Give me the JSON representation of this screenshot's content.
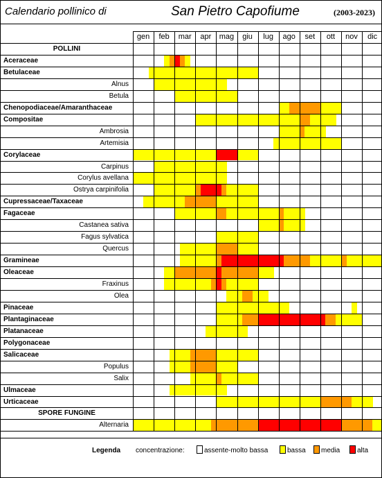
{
  "header": {
    "title_left": "Calendario pollinico di",
    "title_city": "San Pietro Capofiume",
    "years": "(2003-2023)"
  },
  "months": [
    "gen",
    "feb",
    "mar",
    "apr",
    "mag",
    "giu",
    "lug",
    "ago",
    "set",
    "ott",
    "nov",
    "dic"
  ],
  "colors": {
    "0": "#ffffff",
    "1": "#ffff00",
    "2": "#ff9900",
    "3": "#ff0000"
  },
  "rows": [
    {
      "label": "POLLINI",
      "kind": "section",
      "cells": ""
    },
    {
      "label": "Aceraceae",
      "kind": "family",
      "cells": "000000123210000000000000000000000000000000000000"
    },
    {
      "label": "Betulaceae",
      "kind": "family",
      "cells": "000111111111111111111111000000000000000000000000"
    },
    {
      "label": "Alnus",
      "kind": "species",
      "cells": "000011111111111111000000000000000000000000000000"
    },
    {
      "label": "Betula",
      "kind": "species",
      "cells": "000000001111111111110000000000000000000000000000"
    },
    {
      "label": "Chenopodiaceae/Amaranthaceae",
      "kind": "family",
      "cells": "000000000000000000000000000011222222111100000000"
    },
    {
      "label": "Compositae",
      "kind": "family",
      "cells": "000000000000111111111111111111112211111000000000"
    },
    {
      "label": "Ambrosia",
      "kind": "species",
      "cells": "000000000000000000000000000011112111100000000000"
    },
    {
      "label": "Artemisia",
      "kind": "species",
      "cells": "000000000000000000000000000111111111111100000000"
    },
    {
      "label": "Corylaceae",
      "kind": "family",
      "cells": "111111111111111133331111000000000000000000000000"
    },
    {
      "label": "Carpinus",
      "kind": "species",
      "cells": "000011111111111111000000000000000000000000000000"
    },
    {
      "label": "Corylus avellana",
      "kind": "species",
      "cells": "111111111111111111000000000000000000000000000000"
    },
    {
      "label": "Ostrya carpinifolia",
      "kind": "species",
      "cells": "000011111111233332111111000000000000000000000000"
    },
    {
      "label": "Cupressaceae/Taxaceae",
      "kind": "family",
      "cells": "001111111122222211111111000000000000000000000000"
    },
    {
      "label": "Fagaceae",
      "kind": "family",
      "cells": "000000001111111122111111111121111000000000000000"
    },
    {
      "label": "Castanea sativa",
      "kind": "species",
      "cells": "000000000000000000000000111121111000000000000000"
    },
    {
      "label": "Fagus sylvatica",
      "kind": "species",
      "cells": "000000000000000011111111000000000000000000000000"
    },
    {
      "label": "Quercus",
      "kind": "species",
      "cells": "000000000111111122221111000000000000000000000000"
    },
    {
      "label": "Gramineae",
      "kind": "family",
      "cells": "000000000111111123333333333332222211111121111111"
    },
    {
      "label": "Oleaceae",
      "kind": "family",
      "cells": "000000112222222232222222111000000000000000000000"
    },
    {
      "label": "Fraxinus",
      "kind": "species",
      "cells": "000000111111111232111111000000000000000000000000"
    },
    {
      "label": "Olea",
      "kind": "species",
      "cells": "000000000000000000111221110000000000000000000000"
    },
    {
      "label": "Pinaceae",
      "kind": "family",
      "cells": "000000000000000011111111111111000000000000100000"
    },
    {
      "label": "Plantaginaceae",
      "kind": "family",
      "cells": "000000000000000011111222333333333333322111110000"
    },
    {
      "label": "Platanaceae",
      "kind": "family",
      "cells": "000000000000001111111100000000000000000000000000"
    },
    {
      "label": "Polygonaceae",
      "kind": "family",
      "cells": "000000000000000000000000000000000000000000000000"
    },
    {
      "label": "Salicaceae",
      "kind": "family",
      "cells": "000000011112222211111111000000000000000000000000"
    },
    {
      "label": "Populus",
      "kind": "species",
      "cells": "000000011112222211110000000000000000000000000000"
    },
    {
      "label": "Salix",
      "kind": "species",
      "cells": "000000000001111121111111000000000000000000000000"
    },
    {
      "label": "Ulmaceae",
      "kind": "family",
      "cells": "000000011111111111000000000000000000000000000000"
    },
    {
      "label": "Urticaceae",
      "kind": "family",
      "cells": "000000000000000011111111111111111111222222111100"
    },
    {
      "label": "SPORE FUNGINE",
      "kind": "section",
      "cells": ""
    },
    {
      "label": "Alternaria",
      "kind": "species",
      "cells": "111111111111111222222222333333333333333322222211"
    }
  ],
  "legend": {
    "title": "Legenda",
    "prefix": "concentrazione:",
    "items": [
      {
        "label": "assente-molto bassa",
        "level": "0"
      },
      {
        "label": "bassa",
        "level": "1"
      },
      {
        "label": "media",
        "level": "2"
      },
      {
        "label": "alta",
        "level": "3"
      }
    ]
  }
}
